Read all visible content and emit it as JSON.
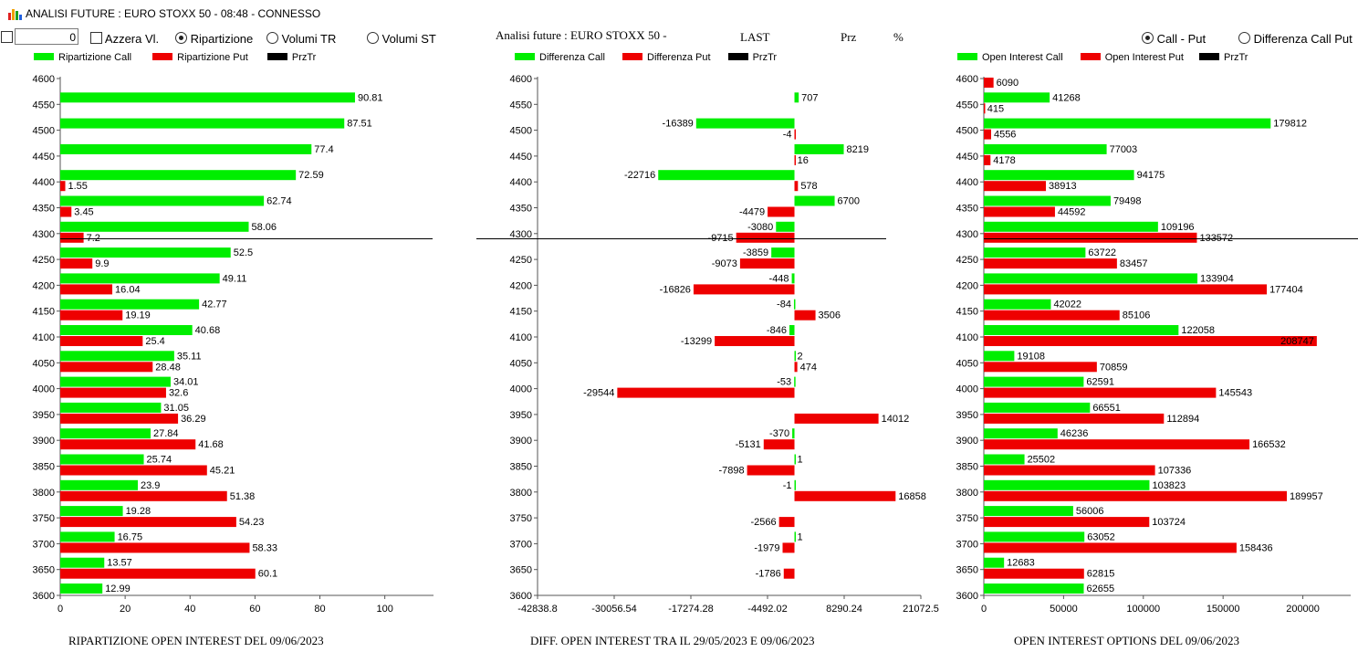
{
  "window": {
    "title": "ANALISI FUTURE : EURO STOXX 50 - 08:48 - CONNESSO"
  },
  "toolbar": {
    "number_value": "0",
    "azzera_label": "Azzera Vl.",
    "ripartizione_label": "Ripartizione",
    "volumi_tr_label": "Volumi TR",
    "volumi_st_label": "Volumi ST",
    "selected_mode": "Ripartizione",
    "header_title": "Analisi future : EURO STOXX 50 -",
    "header_last": "LAST",
    "header_prz": "Prz",
    "header_pct": "%",
    "call_put_label": "Call - Put",
    "diff_call_put_label": "Differenza Call Put",
    "selected_right": "Call - Put"
  },
  "colors": {
    "call": "#00ee00",
    "put": "#ee0000",
    "prztr": "#000000"
  },
  "charts": [
    {
      "caption": "RIPARTIZIONE OPEN INTEREST DEL 09/06/2023",
      "legend": [
        "Ripartizione Call",
        "Ripartizione Put",
        "PrzTr"
      ]
    },
    {
      "caption": "DIFF. OPEN INTEREST TRA IL 29/05/2023 E 09/06/2023",
      "legend": [
        "Differenza Call",
        "Differenza Put",
        "PrzTr"
      ]
    },
    {
      "caption": "OPEN INTEREST OPTIONS DEL 09/06/2023",
      "legend": [
        "Open Interest Call",
        "Open Interest Put",
        "PrzTr"
      ]
    }
  ],
  "chart_data": [
    {
      "type": "bar",
      "orientation": "horizontal",
      "categories": [
        "4600",
        "4550",
        "4500",
        "4450",
        "4400",
        "4350",
        "4300",
        "4250",
        "4200",
        "4150",
        "4100",
        "4050",
        "4000",
        "3950",
        "3900",
        "3850",
        "3800",
        "3750",
        "3700",
        "3650",
        "3600"
      ],
      "series": [
        {
          "name": "Ripartizione Call",
          "values": [
            null,
            90.81,
            87.51,
            77.4,
            72.59,
            62.74,
            58.06,
            52.5,
            49.11,
            42.77,
            40.68,
            35.11,
            34.01,
            31.05,
            27.84,
            25.74,
            23.9,
            19.28,
            16.75,
            13.57,
            12.99
          ]
        },
        {
          "name": "Ripartizione Put",
          "values": [
            null,
            null,
            null,
            null,
            1.55,
            3.45,
            7.2,
            9.9,
            16.04,
            19.19,
            25.4,
            28.48,
            32.6,
            36.29,
            41.68,
            45.21,
            51.38,
            54.23,
            58.33,
            60.1,
            null
          ]
        }
      ],
      "xticks": [
        "0",
        "20",
        "40",
        "60",
        "80",
        "100"
      ],
      "xlim": [
        0,
        115
      ],
      "prztr_level": 4290
    },
    {
      "type": "bar",
      "orientation": "horizontal",
      "categories": [
        "4600",
        "4550",
        "4500",
        "4450",
        "4400",
        "4350",
        "4300",
        "4250",
        "4200",
        "4150",
        "4100",
        "4050",
        "4000",
        "3950",
        "3900",
        "3850",
        "3800",
        "3750",
        "3700",
        "3650",
        "3600"
      ],
      "series": [
        {
          "name": "Differenza Call",
          "values": [
            null,
            707,
            -16389,
            8219,
            -22716,
            6700,
            -3080,
            -3859,
            -448,
            -84,
            -846,
            2,
            -53,
            null,
            -370,
            1,
            -1,
            null,
            1,
            null,
            null
          ]
        },
        {
          "name": "Differenza Put",
          "values": [
            null,
            null,
            -4,
            16,
            578,
            -4479,
            -9715,
            -9073,
            -16826,
            3506,
            -13299,
            474,
            -29544,
            14012,
            -5131,
            -7898,
            16858,
            -2566,
            -1979,
            -1786,
            null
          ]
        }
      ],
      "xticks": [
        "-42838.8",
        "-30056.54",
        "-17274.28",
        "-4492.02",
        "8290.24",
        "21072.5"
      ],
      "xlim": [
        -42838.8,
        21072.5
      ],
      "prztr_level": 4290
    },
    {
      "type": "bar",
      "orientation": "horizontal",
      "categories": [
        "4600",
        "4550",
        "4500",
        "4450",
        "4400",
        "4350",
        "4300",
        "4250",
        "4200",
        "4150",
        "4100",
        "4050",
        "4000",
        "3950",
        "3900",
        "3850",
        "3800",
        "3750",
        "3700",
        "3650",
        "3600"
      ],
      "series": [
        {
          "name": "Open Interest Call",
          "values": [
            null,
            41268,
            179812,
            77003,
            94175,
            79498,
            109196,
            63722,
            133904,
            42022,
            122058,
            19108,
            62591,
            66551,
            46236,
            25502,
            103823,
            56006,
            63052,
            12683,
            62655
          ]
        },
        {
          "name": "Open Interest Put",
          "values": [
            6090,
            415,
            4556,
            4178,
            38913,
            44592,
            133572,
            83457,
            177404,
            85106,
            208747,
            70859,
            145543,
            112894,
            166532,
            107336,
            189957,
            103724,
            158436,
            62815,
            null
          ]
        }
      ],
      "xticks": [
        "0",
        "50000",
        "100000",
        "150000",
        "200000"
      ],
      "xlim": [
        0,
        230000
      ],
      "prztr_level": 4290
    }
  ]
}
